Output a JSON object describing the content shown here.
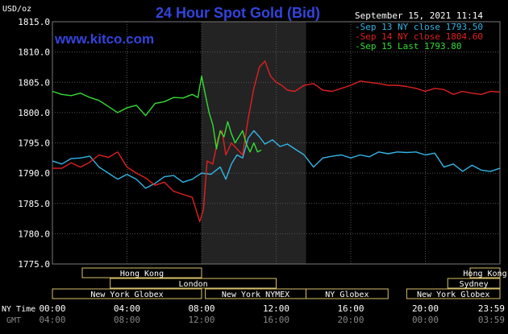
{
  "header": {
    "title": "24 Hour Spot Gold (Bid)",
    "brand": "www.kitco.com",
    "timestamp": "September 15, 2021 11:14",
    "y_unit": "USD/oz"
  },
  "colors": {
    "background": "#000000",
    "title": "#3344dd",
    "brand": "#3344dd",
    "axis_text": "#ffffff",
    "grid": "#555555",
    "frame": "#ffffff",
    "session_shade": "#3a3a3a",
    "sep13": "#33b5e6",
    "sep14": "#e02020",
    "sep15": "#33dd33",
    "market_box_fill": "#000000",
    "market_box_stroke": "#d8c06a",
    "market_box_text": "#ffffff",
    "bottom_time": "#ffffff",
    "bottom_gmt": "#888888"
  },
  "legend": [
    {
      "key": "sep13",
      "text": "Sep 13 NY close 1793.50"
    },
    {
      "key": "sep14",
      "text": "Sep 14 NY close 1804.60"
    },
    {
      "key": "sep15",
      "text": "Sep 15 Last 1793.80"
    }
  ],
  "markets": [
    {
      "label": "Hong Kong",
      "start": 1.6,
      "end": 8.0
    },
    {
      "label": "Hong Kong",
      "start": 22.4,
      "end": 24.0
    },
    {
      "label": "London",
      "start": 3.1,
      "end": 12.0
    },
    {
      "label": "Sydney",
      "start": 21.2,
      "end": 24.0
    },
    {
      "label": "New York Globex",
      "start": 0.0,
      "end": 8.0
    },
    {
      "label": "New York NYMEX",
      "start": 8.2,
      "end": 13.6
    },
    {
      "label": "NY Globex",
      "start": 13.6,
      "end": 18.0
    },
    {
      "label": "New York Globex",
      "start": 19.0,
      "end": 24.0
    }
  ],
  "bottom": {
    "ny_time_label": "NY Time",
    "gmt_label": "GMT",
    "ny_times": [
      "00:00",
      "04:00",
      "08:00",
      "12:00",
      "16:00",
      "20:00",
      "23:59"
    ],
    "gmt_times": [
      "04:00",
      "08:00",
      "12:00",
      "16:00",
      "20:00",
      "00:00",
      "03:59"
    ]
  },
  "chart_data": {
    "type": "line",
    "title": "24 Hour Spot Gold (Bid)",
    "ylabel": "USD/oz",
    "xlabel": "NY Time",
    "xlim": [
      0,
      24
    ],
    "ylim": [
      1775.0,
      1815.0
    ],
    "yticks": [
      1775.0,
      1780.0,
      1785.0,
      1790.0,
      1795.0,
      1800.0,
      1805.0,
      1810.0,
      1815.0
    ],
    "ytick_labels": [
      "1775.0",
      "1780.0",
      "1785.0",
      "1790.0",
      "1795.0",
      "1800.0",
      "1805.0",
      "1810.0",
      "1815.0"
    ],
    "xticks": [
      0,
      4,
      8,
      12,
      16,
      20,
      24
    ],
    "grid": true,
    "shaded_session": [
      8.0,
      13.6
    ],
    "legend_position": "top-right",
    "series": [
      {
        "name": "Sep 13 NY close 1793.50",
        "color_key": "sep13",
        "x": [
          0,
          0.5,
          1,
          1.5,
          2,
          2.5,
          3,
          3.5,
          4,
          4.5,
          5,
          5.5,
          6,
          6.5,
          7,
          7.5,
          8,
          8.5,
          9,
          9.3,
          9.6,
          9.9,
          10.2,
          10.5,
          10.8,
          11.1,
          11.4,
          11.8,
          12.2,
          12.6,
          13,
          13.5,
          14,
          14.5,
          15,
          15.5,
          16,
          16.5,
          17,
          17.5,
          18,
          18.5,
          19,
          19.5,
          20,
          20.5,
          21,
          21.5,
          22,
          22.5,
          23,
          23.5,
          24
        ],
        "y": [
          1792.0,
          1791.5,
          1792.4,
          1792.5,
          1792.8,
          1791.0,
          1790.0,
          1789.0,
          1789.8,
          1789.0,
          1787.5,
          1788.3,
          1789.4,
          1789.6,
          1788.5,
          1789.0,
          1790.0,
          1789.8,
          1791.0,
          1789.0,
          1791.5,
          1793.0,
          1792.5,
          1795.8,
          1797.0,
          1796.0,
          1794.8,
          1795.5,
          1794.4,
          1794.8,
          1794.0,
          1793.0,
          1791.0,
          1792.5,
          1792.8,
          1793.0,
          1792.5,
          1793.0,
          1792.7,
          1793.5,
          1793.2,
          1793.5,
          1793.4,
          1793.5,
          1793.0,
          1793.3,
          1791.0,
          1791.5,
          1790.3,
          1791.3,
          1790.5,
          1790.3,
          1790.8
        ]
      },
      {
        "name": "Sep 14 NY close 1804.60",
        "color_key": "sep14",
        "x": [
          0,
          0.5,
          1,
          1.5,
          2,
          2.5,
          3,
          3.5,
          4,
          4.5,
          5,
          5.5,
          6,
          6.5,
          7,
          7.5,
          7.9,
          8.1,
          8.3,
          8.6,
          8.9,
          9.1,
          9.3,
          9.6,
          9.9,
          10.2,
          10.5,
          10.8,
          11.1,
          11.4,
          11.7,
          12.0,
          12.3,
          12.6,
          13,
          13.5,
          14,
          14.5,
          15,
          15.5,
          16,
          16.5,
          17,
          17.5,
          18,
          18.5,
          19,
          19.5,
          20,
          20.5,
          21,
          21.5,
          22,
          22.5,
          23,
          23.5,
          24
        ],
        "y": [
          1790.8,
          1790.8,
          1791.7,
          1791.0,
          1791.8,
          1793.0,
          1792.6,
          1793.5,
          1791.0,
          1790.0,
          1789.2,
          1788.0,
          1788.5,
          1787.0,
          1786.5,
          1786.0,
          1782.0,
          1784.0,
          1792.0,
          1791.5,
          1796.0,
          1797.0,
          1793.0,
          1795.0,
          1794.0,
          1793.0,
          1799.0,
          1804.0,
          1807.5,
          1808.5,
          1806.0,
          1805.0,
          1804.5,
          1803.7,
          1803.5,
          1804.5,
          1804.8,
          1803.7,
          1803.5,
          1804.0,
          1804.5,
          1805.2,
          1805.0,
          1804.8,
          1804.5,
          1804.5,
          1804.3,
          1804.0,
          1803.5,
          1804.0,
          1803.8,
          1803.0,
          1803.5,
          1803.2,
          1803.0,
          1803.5,
          1803.4
        ]
      },
      {
        "name": "Sep 15 Last 1793.80",
        "color_key": "sep15",
        "x": [
          0,
          0.5,
          1,
          1.5,
          2,
          2.5,
          3,
          3.5,
          4,
          4.5,
          5,
          5.5,
          6,
          6.5,
          7,
          7.5,
          7.8,
          8.0,
          8.2,
          8.4,
          8.6,
          8.8,
          9.0,
          9.2,
          9.4,
          9.6,
          9.8,
          10.0,
          10.2,
          10.4,
          10.6,
          10.8,
          11.0,
          11.2
        ],
        "y": [
          1803.5,
          1803.0,
          1802.8,
          1803.2,
          1802.5,
          1802.0,
          1801.0,
          1800.0,
          1800.8,
          1801.2,
          1799.5,
          1801.5,
          1801.8,
          1802.5,
          1802.4,
          1803.0,
          1802.5,
          1806.0,
          1803.0,
          1800.0,
          1798.0,
          1794.0,
          1797.0,
          1796.0,
          1798.5,
          1796.5,
          1795.0,
          1796.0,
          1797.0,
          1794.8,
          1793.5,
          1795.0,
          1793.5,
          1793.8
        ]
      }
    ]
  }
}
